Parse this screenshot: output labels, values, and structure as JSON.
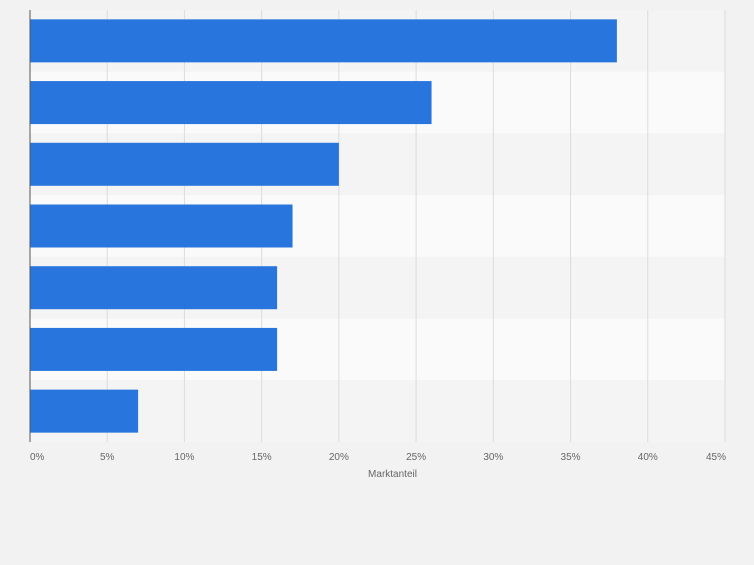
{
  "chart_data": {
    "type": "bar",
    "orientation": "horizontal",
    "categories": [
      "",
      "",
      "",
      "",
      "",
      "",
      ""
    ],
    "values": [
      38,
      26,
      20,
      17,
      16,
      16,
      7
    ],
    "xlabel": "Marktanteil",
    "ylabel": "",
    "xlim": [
      0,
      45
    ],
    "x_ticks": [
      "0%",
      "5%",
      "10%",
      "15%",
      "20%",
      "25%",
      "30%",
      "35%",
      "40%",
      "45%"
    ],
    "grid": true,
    "bar_color": "#2876dd",
    "band_colors": [
      "#f4f4f4",
      "#fafafa"
    ]
  }
}
